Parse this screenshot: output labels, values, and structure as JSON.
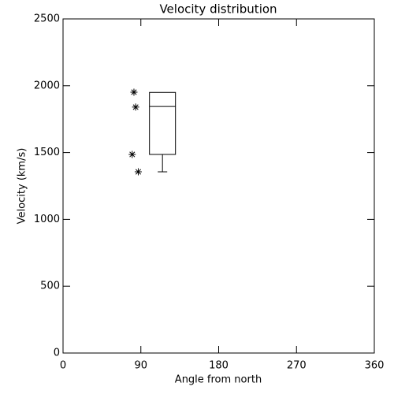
{
  "chart_data": {
    "type": "box",
    "title": "Velocity distribution",
    "x_label": "Angle from north",
    "y_label": "Velocity (km/s)",
    "xlim": [
      0,
      360
    ],
    "xticks": [
      0,
      90,
      180,
      270,
      360
    ],
    "ylim": [
      0,
      2500
    ],
    "yticks": [
      0,
      500,
      1000,
      1500,
      2000,
      2500
    ],
    "box": {
      "x": 115,
      "min": 1356,
      "q1": 1486,
      "median": 1845,
      "q3": 1950,
      "max": 1950
    },
    "points": {
      "x": [
        82,
        84,
        80,
        87
      ],
      "y": [
        1952,
        1840,
        1486,
        1356
      ]
    },
    "color": "#000000"
  }
}
